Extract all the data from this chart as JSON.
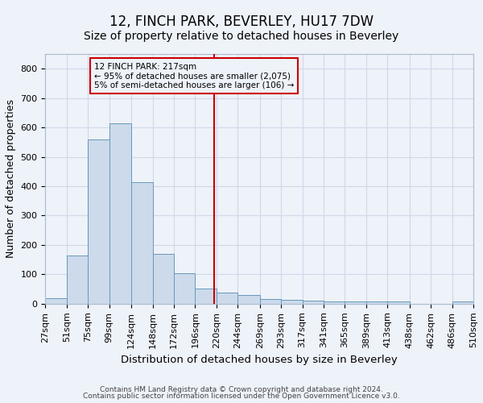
{
  "title": "12, FINCH PARK, BEVERLEY, HU17 7DW",
  "subtitle": "Size of property relative to detached houses in Beverley",
  "xlabel": "Distribution of detached houses by size in Beverley",
  "ylabel": "Number of detached properties",
  "footer_line1": "Contains HM Land Registry data © Crown copyright and database right 2024.",
  "footer_line2": "Contains public sector information licensed under the Open Government Licence v3.0.",
  "bar_color": "#ccdaeb",
  "bar_edge_color": "#6699bb",
  "grid_color": "#d0d8e8",
  "vline_color": "#cc0000",
  "vline_x": 217,
  "annotation_line1": "12 FINCH PARK: 217sqm",
  "annotation_line2": "← 95% of detached houses are smaller (2,075)",
  "annotation_line3": "5% of semi-detached houses are larger (106) →",
  "annotation_box_color": "#cc0000",
  "bin_edges": [
    27,
    51,
    75,
    99,
    124,
    148,
    172,
    196,
    220,
    244,
    269,
    293,
    317,
    341,
    365,
    389,
    413,
    438,
    462,
    486,
    510
  ],
  "bar_heights": [
    18,
    165,
    560,
    615,
    413,
    170,
    105,
    52,
    38,
    30,
    15,
    12,
    10,
    7,
    7,
    7,
    8,
    0,
    0,
    7
  ],
  "ylim": [
    0,
    850
  ],
  "yticks": [
    0,
    100,
    200,
    300,
    400,
    500,
    600,
    700,
    800
  ],
  "background_color": "#eef2f9",
  "title_fontsize": 12,
  "subtitle_fontsize": 10,
  "tick_label_fontsize": 8,
  "ylabel_fontsize": 9,
  "xlabel_fontsize": 9.5
}
